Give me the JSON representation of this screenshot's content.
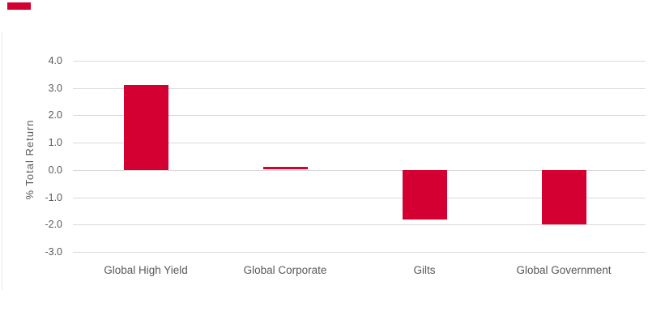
{
  "brand_accent": {
    "name": "red-accent-bar",
    "color": "#D40032"
  },
  "y_axis": {
    "title": "% Total Return",
    "tick_labels": [
      "4.0",
      "3.0",
      "2.0",
      "1.0",
      "0.0",
      "-1.0",
      "-2.0",
      "-3.0"
    ]
  },
  "chart_data": {
    "type": "bar",
    "categories": [
      "Global High Yield",
      "Global Corporate",
      "Gilts",
      "Global Government"
    ],
    "values": [
      3.1,
      0.1,
      -1.8,
      -2.0
    ],
    "title": "",
    "xlabel": "",
    "ylabel": "% Total Return",
    "ylim": [
      -3.0,
      4.0
    ],
    "yticks": [
      4.0,
      3.0,
      2.0,
      1.0,
      0.0,
      -1.0,
      -2.0,
      -3.0
    ],
    "ytick_labels": [
      "4.0",
      "3.0",
      "2.0",
      "1.0",
      "0.0",
      "-1.0",
      "-2.0",
      "-3.0"
    ],
    "bar_color": "#D40032",
    "gridline_color": "#D9D9D9",
    "text_color": "#595959",
    "grid": true,
    "legend": "none"
  }
}
